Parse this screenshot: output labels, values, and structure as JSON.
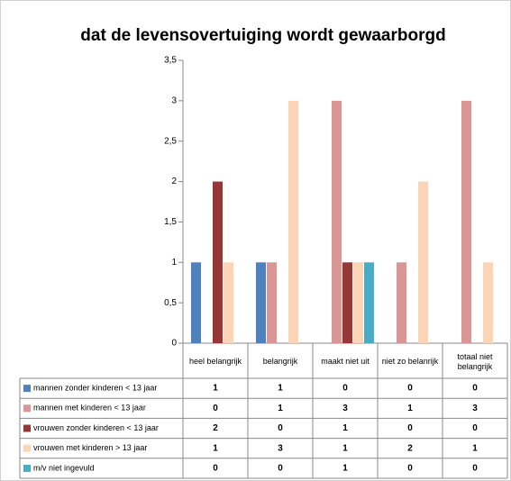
{
  "chart_data": {
    "type": "bar",
    "title": "dat de levensovertuiging wordt gewaarborgd",
    "categories": [
      "heel belangrijk",
      "belangrijk",
      "maakt niet uit",
      "niet zo belanrijk",
      "totaal niet belangrijk"
    ],
    "series": [
      {
        "name": "mannen  zonder kinderen < 13 jaar",
        "color": "#4f81bd",
        "values": [
          1,
          1,
          0,
          0,
          0
        ]
      },
      {
        "name": "mannen  met kinderen < 13 jaar",
        "color": "#d99694",
        "values": [
          0,
          1,
          3,
          1,
          3
        ]
      },
      {
        "name": "vrouwen zonder kinderen < 13 jaar",
        "color": "#953735",
        "values": [
          2,
          0,
          1,
          0,
          0
        ]
      },
      {
        "name": "vrouwen met kinderen > 13 jaar",
        "color": "#fbd5b5",
        "values": [
          1,
          3,
          1,
          2,
          1
        ]
      },
      {
        "name": "m/v niet ingevuld",
        "color": "#4bacc6",
        "values": [
          0,
          0,
          1,
          0,
          0
        ]
      }
    ],
    "ylim": [
      0,
      3.5
    ],
    "yticks": [
      0,
      {
        "value": 0.5,
        "label": "0,5"
      },
      1,
      {
        "value": 1.5,
        "label": "1,5"
      },
      2,
      {
        "value": 2.5,
        "label": "2,5"
      },
      3,
      {
        "value": 3.5,
        "label": "3,5"
      }
    ]
  }
}
